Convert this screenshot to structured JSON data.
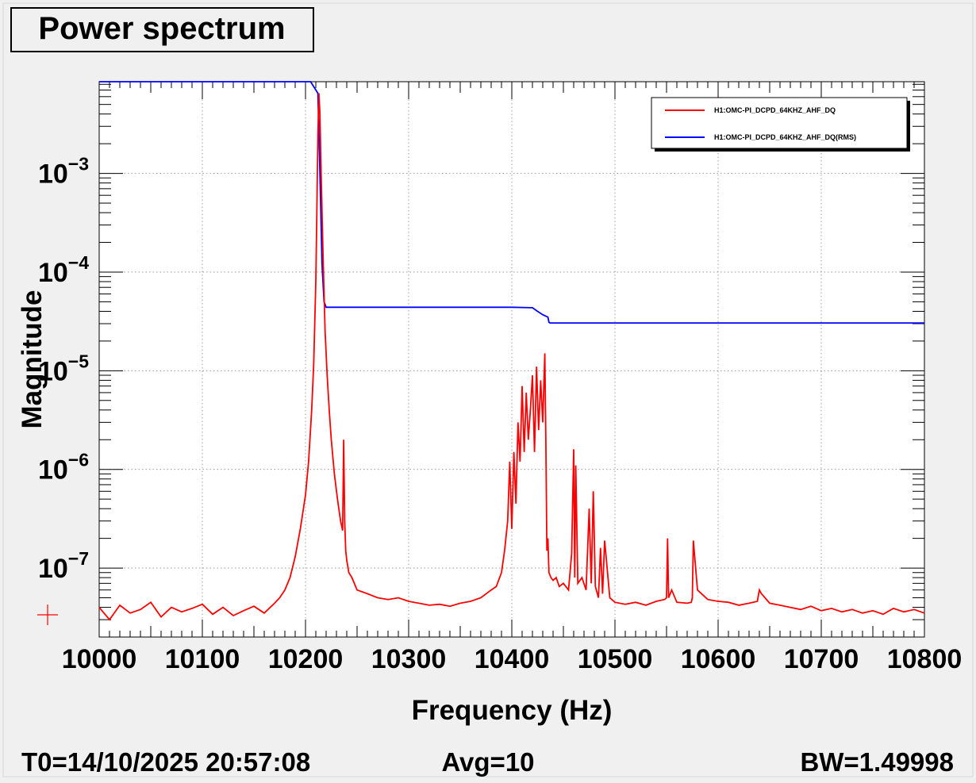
{
  "title": "Power spectrum",
  "footer": {
    "t0": "T0=14/10/2025 20:57:08",
    "avg": "Avg=10",
    "bw": "BW=1.49998"
  },
  "chart_data": {
    "type": "line",
    "xlabel": "Frequency (Hz)",
    "ylabel": "Magnitude",
    "xscale": "linear",
    "yscale": "log",
    "xlim": [
      10000,
      10800
    ],
    "ylim": [
      2e-08,
      0.0085
    ],
    "grid": true,
    "legend_position": "top-right",
    "x_ticks": [
      {
        "value": 10000,
        "label": "10000"
      },
      {
        "value": 10100,
        "label": "10100"
      },
      {
        "value": 10200,
        "label": "10200"
      },
      {
        "value": 10300,
        "label": "10300"
      },
      {
        "value": 10400,
        "label": "10400"
      },
      {
        "value": 10500,
        "label": "10500"
      },
      {
        "value": 10600,
        "label": "10600"
      },
      {
        "value": 10700,
        "label": "10700"
      },
      {
        "value": 10800,
        "label": "10800"
      }
    ],
    "y_ticks": [
      {
        "value": 1e-07,
        "base": "10",
        "exp": "−7"
      },
      {
        "value": 1e-06,
        "base": "10",
        "exp": "−6"
      },
      {
        "value": 1e-05,
        "base": "10",
        "exp": "−5"
      },
      {
        "value": 0.0001,
        "base": "10",
        "exp": "−4"
      },
      {
        "value": 0.001,
        "base": "10",
        "exp": "−3"
      }
    ],
    "series": [
      {
        "name": "H1:OMC-PI_DCPD_64KHZ_AHF_DQ",
        "color": "#ff0000",
        "x": [
          10000,
          10010,
          10020,
          10030,
          10040,
          10050,
          10060,
          10070,
          10080,
          10090,
          10100,
          10110,
          10120,
          10130,
          10140,
          10150,
          10160,
          10170,
          10175,
          10180,
          10185,
          10190,
          10195,
          10200,
          10203,
          10206,
          10208,
          10210,
          10211,
          10212,
          10213,
          10214,
          10215,
          10217,
          10219,
          10221,
          10223,
          10225,
          10228,
          10231,
          10234,
          10236,
          10237,
          10238,
          10239,
          10240,
          10242,
          10245,
          10250,
          10260,
          10270,
          10280,
          10290,
          10300,
          10310,
          10320,
          10330,
          10340,
          10350,
          10360,
          10370,
          10380,
          10385,
          10390,
          10393,
          10396,
          10398,
          10400,
          10402,
          10404,
          10406,
          10408,
          10410,
          10412,
          10414,
          10416,
          10418,
          10420,
          10422,
          10424,
          10426,
          10428,
          10430,
          10432,
          10433,
          10434,
          10435,
          10436,
          10438,
          10440,
          10443,
          10446,
          10450,
          10455,
          10458,
          10460,
          10461,
          10462,
          10464,
          10468,
          10472,
          10475,
          10477,
          10479,
          10481,
          10484,
          10486,
          10488,
          10490,
          10495,
          10500,
          10510,
          10520,
          10530,
          10540,
          10548,
          10550,
          10551,
          10552,
          10555,
          10560,
          10570,
          10574,
          10575,
          10576,
          10580,
          10590,
          10600,
          10610,
          10620,
          10630,
          10638,
          10640,
          10642,
          10650,
          10660,
          10670,
          10680,
          10690,
          10700,
          10710,
          10720,
          10730,
          10740,
          10750,
          10760,
          10770,
          10780,
          10790,
          10800
        ],
        "y": [
          4e-08,
          3e-08,
          4.2e-08,
          3.5e-08,
          3.8e-08,
          4.5e-08,
          3.2e-08,
          4e-08,
          3.6e-08,
          3.9e-08,
          4.3e-08,
          3.4e-08,
          4e-08,
          3.3e-08,
          3.7e-08,
          4.1e-08,
          3.5e-08,
          4.4e-08,
          5e-08,
          6e-08,
          8e-08,
          1.3e-07,
          2.5e-07,
          5.5e-07,
          1.2e-06,
          4e-06,
          1.2e-05,
          8e-05,
          0.0004,
          0.0025,
          0.0065,
          0.004,
          0.0012,
          0.00015,
          2.5e-05,
          9e-06,
          4e-06,
          2e-06,
          9e-07,
          5e-07,
          3e-07,
          2.4e-07,
          2e-06,
          3e-07,
          1.5e-07,
          1.2e-07,
          9e-08,
          8e-08,
          6e-08,
          5.5e-08,
          5e-08,
          4.8e-08,
          5e-08,
          4.6e-08,
          4.4e-08,
          4.2e-08,
          4.3e-08,
          4.1e-08,
          4.4e-08,
          4.6e-08,
          5e-08,
          6e-08,
          6.5e-08,
          9e-08,
          1.5e-07,
          3e-07,
          1.2e-06,
          2.5e-07,
          1.5e-06,
          4.5e-07,
          3e-06,
          1.2e-06,
          7e-06,
          1.5e-06,
          6e-06,
          2e-06,
          4e-06,
          9e-06,
          1.5e-06,
          1.1e-05,
          2.5e-06,
          8e-06,
          3e-06,
          1.5e-05,
          2e-06,
          1.5e-07,
          2e-07,
          9e-08,
          8e-08,
          7.5e-08,
          8e-08,
          6.5e-08,
          7e-08,
          6e-08,
          1.4e-07,
          1.6e-06,
          8e-08,
          1.1e-06,
          7e-08,
          8e-08,
          6e-08,
          4e-07,
          7e-08,
          6e-07,
          6.5e-08,
          5e-08,
          1.6e-07,
          5.5e-08,
          1.9e-07,
          5e-08,
          4.5e-08,
          4.3e-08,
          4.5e-08,
          4.2e-08,
          4.6e-08,
          4.8e-08,
          5e-08,
          2e-07,
          5e-08,
          6e-08,
          4.5e-08,
          4.4e-08,
          4.5e-08,
          5e-08,
          1.9e-07,
          6e-08,
          4.8e-08,
          4.6e-08,
          4.5e-08,
          4.2e-08,
          4.4e-08,
          4.6e-08,
          6e-08,
          5.5e-08,
          4.4e-08,
          4.2e-08,
          4e-08,
          3.8e-08,
          4.1e-08,
          3.7e-08,
          3.9e-08,
          3.6e-08,
          3.8e-08,
          3.5e-08,
          3.7e-08,
          3.4e-08,
          3.9e-08,
          3.6e-08,
          3.8e-08,
          3.5e-08
        ]
      },
      {
        "name": "H1:OMC-PI_DCPD_64KHZ_AHF_DQ(RMS)",
        "color": "#0000ff",
        "x": [
          10000,
          10205,
          10212,
          10214,
          10216,
          10218,
          10220,
          10300,
          10380,
          10400,
          10420,
          10425,
          10430,
          10435,
          10436,
          10437,
          10500,
          10600,
          10700,
          10800
        ],
        "y": [
          0.0085,
          0.0085,
          0.0065,
          0.001,
          0.00012,
          5e-05,
          4.4e-05,
          4.4e-05,
          4.4e-05,
          4.4e-05,
          4.35e-05,
          4e-05,
          3.7e-05,
          3.5e-05,
          3.1e-05,
          3.05e-05,
          3.05e-05,
          3.05e-05,
          3.05e-05,
          3.05e-05
        ]
      }
    ]
  }
}
